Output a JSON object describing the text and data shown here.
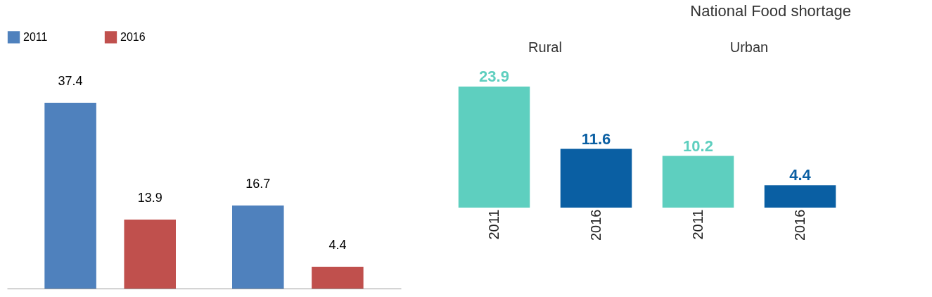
{
  "chart_data": [
    {
      "type": "bar",
      "categories": [
        null,
        null
      ],
      "series": [
        {
          "name": "2011",
          "color": "#4f81bd",
          "values": [
            37.4,
            16.7
          ]
        },
        {
          "name": "2016",
          "color": "#c0504d",
          "values": [
            13.9,
            4.4
          ]
        }
      ],
      "data_labels": true,
      "legend": "top"
    },
    {
      "type": "bar",
      "title": "National Food shortage",
      "categories": [
        "2011",
        "2016",
        "2011",
        "2016"
      ],
      "values": [
        23.9,
        11.6,
        10.2,
        4.4
      ],
      "colors": [
        "#5ecfbf",
        "#0a5fa3",
        "#5ecfbf",
        "#0a5fa3"
      ],
      "data_labels": true,
      "annotations": [
        "Rural",
        "Urban"
      ]
    }
  ]
}
